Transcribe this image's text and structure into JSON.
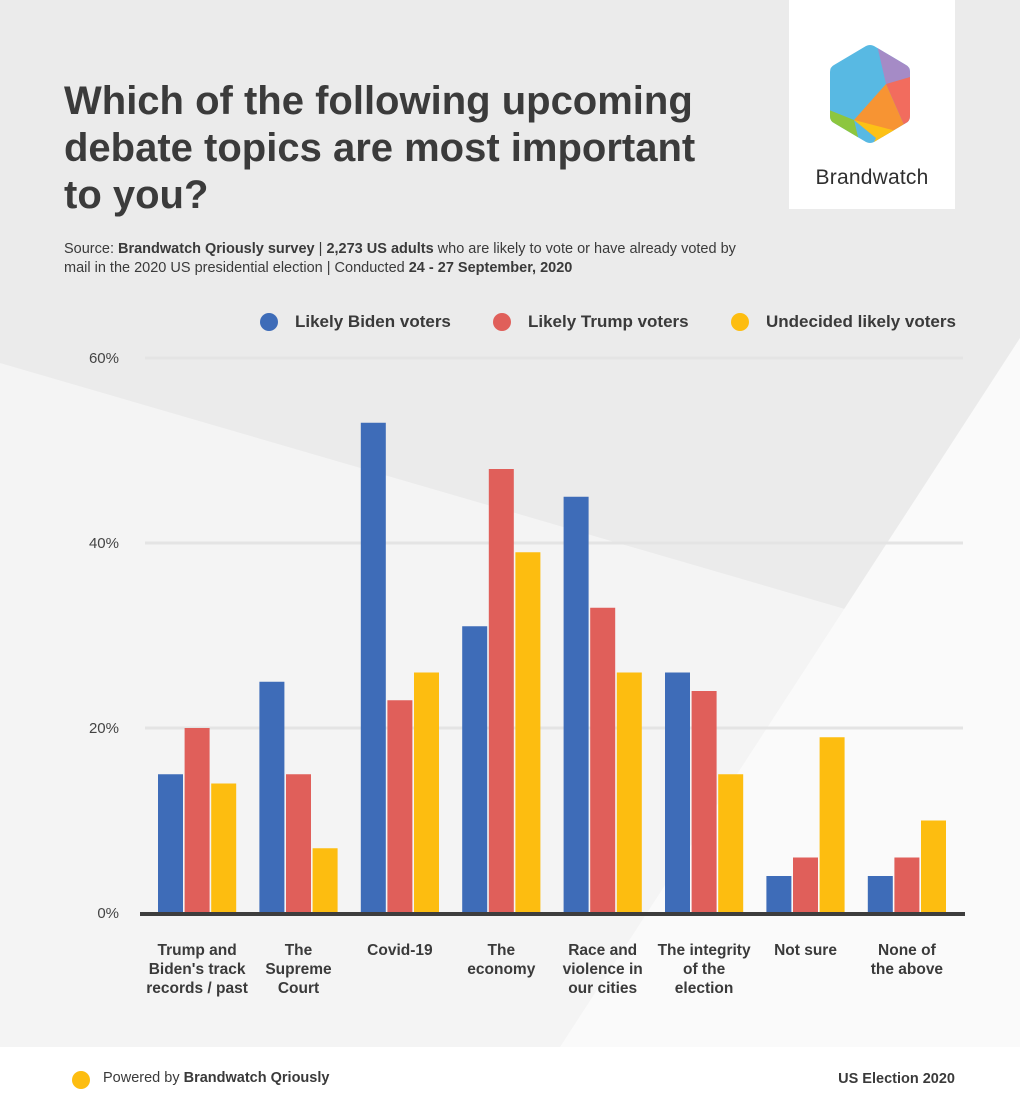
{
  "title": "Which of the following upcoming\ndebate topics are most important\n to you?",
  "source": {
    "prefix": "Source: ",
    "survey": "Brandwatch Qriously survey",
    "sep1": " | ",
    "sample": "2,273 US adults",
    "mid": " who are likely to vote or have already voted by mail in the 2020 US presidential election | Conducted ",
    "dates": "24 - 27 September, 2020"
  },
  "logo": {
    "name": "Brandwatch",
    "icon": "brandwatch-hexagon-logo"
  },
  "colors": {
    "biden": "#3e6cb8",
    "trump": "#e05f5a",
    "undecided": "#fdbd10",
    "text": "#3a3a3a",
    "grid": "#e4e4e4",
    "axis": "#3d3d3d"
  },
  "chart_data": {
    "type": "bar",
    "categories": [
      "Trump and Biden's track records / past",
      "The Supreme Court",
      "Covid-19",
      "The economy",
      "Race and violence in our cities",
      "The integrity of the election",
      "Not sure",
      "None of the above"
    ],
    "category_lines": [
      "Trump and\nBiden's track\nrecords / past",
      "The\nSupreme\nCourt",
      "Covid-19",
      "The\neconomy",
      "Race and\nviolence in\nour cities",
      "The integrity\nof the\nelection",
      "Not sure",
      "None of\nthe above"
    ],
    "series": [
      {
        "name": "Likely Biden voters",
        "color": "#3e6cb8",
        "values": [
          15,
          25,
          53,
          31,
          45,
          26,
          4,
          4
        ]
      },
      {
        "name": "Likely Trump voters",
        "color": "#e05f5a",
        "values": [
          20,
          15,
          23,
          48,
          33,
          24,
          6,
          6
        ]
      },
      {
        "name": "Undecided likely voters",
        "color": "#fdbd10",
        "values": [
          14,
          7,
          26,
          39,
          26,
          15,
          19,
          10
        ]
      }
    ],
    "yticks": [
      0,
      20,
      40,
      60
    ],
    "ytick_labels": [
      "0%",
      "20%",
      "40%",
      "60%"
    ],
    "ylim": [
      0,
      60
    ],
    "grid": true,
    "legend": "top"
  },
  "footer": {
    "powered_prefix": "Powered by ",
    "powered_brand": "Brandwatch Qriously",
    "right_label": "US Election 2020"
  }
}
